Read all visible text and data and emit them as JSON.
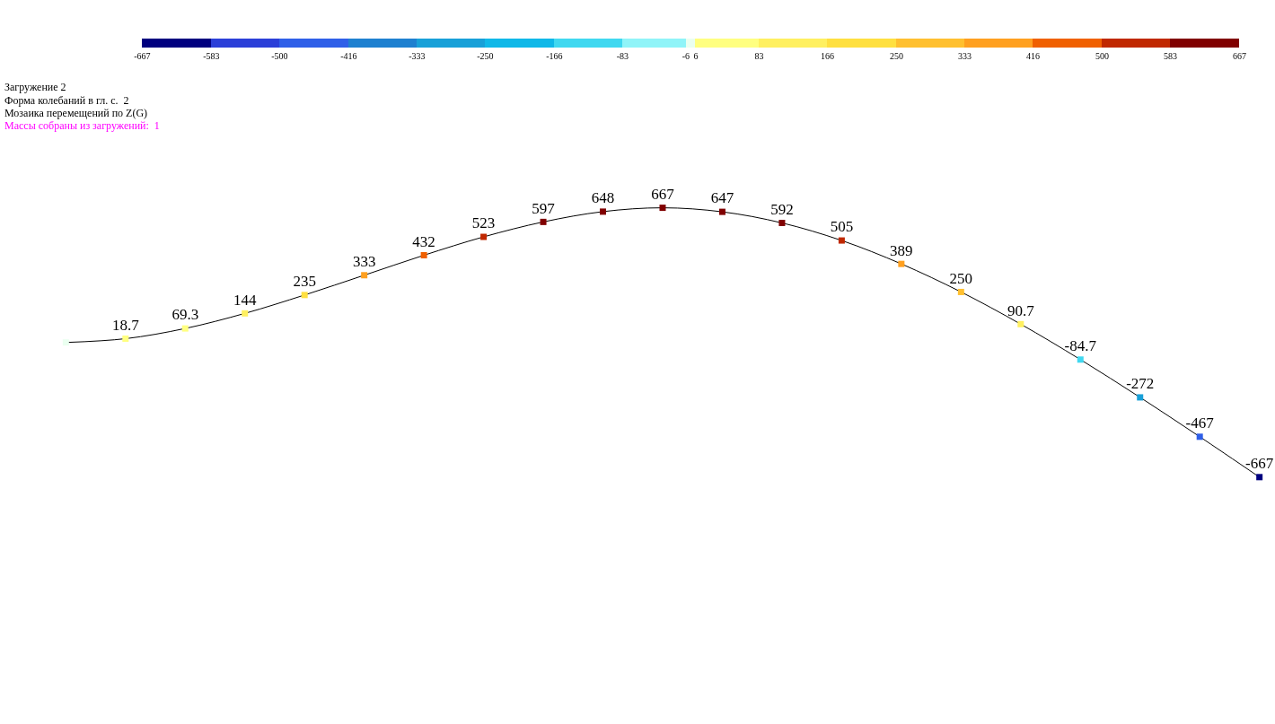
{
  "chart_data": {
    "type": "line",
    "title": "Загружение 2",
    "subtitle": "Форма колебаний в гл. с.  2",
    "annotations": [
      "Мозаика перемещений по Z(G)",
      "Массы собраны из загружений:  1"
    ],
    "categories": [
      null,
      null,
      null,
      null,
      null,
      null,
      null,
      null,
      null,
      null,
      null,
      null,
      null,
      null,
      null,
      null,
      null,
      null,
      null,
      null,
      null
    ],
    "series": [
      {
        "color": "#000000",
        "values": [
          0,
          18.7,
          69.3,
          144,
          235,
          333,
          432,
          523,
          597,
          648,
          667,
          647,
          592,
          505,
          389,
          250,
          90.7,
          -84.7,
          -272,
          -467,
          -667
        ],
        "value_labels": [
          null,
          "18.7",
          "69.3",
          "144",
          "235",
          "333",
          "432",
          "523",
          "597",
          "648",
          "667",
          "647",
          "592",
          "505",
          "389",
          "250",
          "90.7",
          "-84.7",
          "-272",
          "-467",
          "-667"
        ]
      }
    ],
    "clim": [
      -667,
      667
    ],
    "cticks": [
      -667,
      -583,
      -500,
      -416,
      -333,
      -250,
      -166,
      -83,
      -6,
      6,
      83,
      166,
      250,
      333,
      416,
      500,
      583,
      667
    ],
    "marker": "square",
    "line_style": "solid",
    "legend": false,
    "tick_labels": false
  }
}
